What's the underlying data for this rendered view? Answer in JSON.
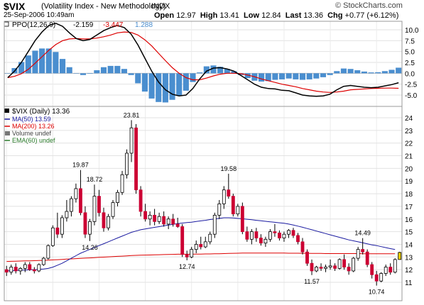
{
  "header": {
    "symbol": "$VIX",
    "name": "(Volatility Index - New Methodology)",
    "exchange": "INDX",
    "date": "25-Sep-2006 10:49am",
    "open_label": "Open",
    "open": "12.97",
    "high_label": "High",
    "high": "13.41",
    "low_label": "Low",
    "low": "12.84",
    "last_label": "Last",
    "last": "13.36",
    "chg_label": "Chg",
    "chg": "+0.77 (+6.12%)",
    "brand": "© StockCharts.com"
  },
  "colors": {
    "up": "#ffffff",
    "down": "#cc0033",
    "ma50": "#1a1aa0",
    "ma200": "#dd0000",
    "ppo": "#000000",
    "signal": "#dd0000",
    "hist": "#4a8ecf",
    "last_marker": "#f0d000"
  },
  "chart_data": [
    {
      "type": "bar",
      "panel": "indicator",
      "legend": {
        "ppo": "PPO(12,26,9)",
        "v1": "-2.159",
        "v2": "-3.447",
        "v3": "1.288"
      },
      "yticks": [
        "10.0",
        "7.5",
        "5.0",
        "2.5",
        "0.0",
        "-2.5",
        "-5.0"
      ],
      "ylim": [
        -6.5,
        11.5
      ],
      "ppo": [
        -1,
        0.5,
        2.5,
        5,
        7.5,
        9.5,
        11,
        11.5,
        10.8,
        9.3,
        8,
        7.5,
        7.8,
        8.8,
        9.8,
        10.5,
        11,
        10.5,
        9,
        6.5,
        3.5,
        0.5,
        -2,
        -3.8,
        -4.8,
        -5.2,
        -5,
        -3.5,
        -1.3,
        0.5,
        1.2,
        1.3,
        1,
        0.5,
        -0.5,
        -1.5,
        -2.5,
        -3.2,
        -3.5,
        -3.6,
        -3.9,
        -4,
        -4.5,
        -5,
        -5.2,
        -5.3,
        -5.2,
        -4.8,
        -3.8,
        -3,
        -2.8,
        -3,
        -3.2,
        -3.3,
        -3.2,
        -2.9,
        -2.6,
        -2.159
      ],
      "signal": [
        -1,
        -0.7,
        -0.1,
        0.9,
        2.3,
        3.8,
        5.3,
        6.6,
        7.5,
        7.9,
        8,
        7.9,
        7.9,
        8.1,
        8.4,
        8.8,
        9.3,
        9.5,
        9.4,
        8.8,
        7.7,
        6.3,
        4.6,
        2.9,
        1.3,
        0,
        -1,
        -1.5,
        -1.5,
        -1.1,
        -0.6,
        -0.2,
        0,
        0,
        -0.1,
        -0.4,
        -0.8,
        -1.3,
        -1.7,
        -2.1,
        -2.5,
        -2.8,
        -3.1,
        -3.5,
        -3.8,
        -4.1,
        -4.3,
        -4.4,
        -4.3,
        -4.1,
        -3.8,
        -3.7,
        -3.6,
        -3.5,
        -3.45,
        -3.4,
        -3.4,
        -3.447
      ]
    },
    {
      "type": "candlestick",
      "panel": "price",
      "legend": {
        "main": "$VIX (Daily) 13.36",
        "ma50": "MA(50) 13.59",
        "ma200": "MA(200) 13.26",
        "volume": "Volume undef",
        "ema": "EMA(60) undef"
      },
      "yticks": [
        "24",
        "23",
        "22",
        "21",
        "20",
        "19",
        "18",
        "17",
        "16",
        "15",
        "14",
        "13",
        "12",
        "11"
      ],
      "ylim": [
        10.2,
        24.8
      ],
      "ohlc": [
        [
          12,
          12.3,
          11.5,
          11.8
        ],
        [
          11.8,
          12.4,
          11.6,
          12.2
        ],
        [
          12.2,
          12.5,
          11.7,
          11.9
        ],
        [
          11.9,
          12.2,
          11.6,
          12.1
        ],
        [
          12.1,
          12.6,
          11.8,
          12.4
        ],
        [
          12.4,
          12.6,
          11.9,
          12
        ],
        [
          12,
          12.2,
          11.7,
          11.9
        ],
        [
          11.9,
          12.5,
          11.8,
          12.4
        ],
        [
          12.4,
          13,
          12.3,
          12.9
        ],
        [
          12.9,
          14,
          12.8,
          13.9
        ],
        [
          13.9,
          15.5,
          13.8,
          15.3
        ],
        [
          15.3,
          16.5,
          14.5,
          14.8
        ],
        [
          14.8,
          16.3,
          14.5,
          16.1
        ],
        [
          16.1,
          17.5,
          15.8,
          16.6
        ],
        [
          16.6,
          17.8,
          16.2,
          17.6
        ],
        [
          17.6,
          18.8,
          17.3,
          18.4
        ],
        [
          18.4,
          19.87,
          16.3,
          16.5
        ],
        [
          16.5,
          17,
          14.5,
          14.8
        ],
        [
          14.8,
          16,
          14.26,
          15.8
        ],
        [
          15.8,
          18.72,
          15.5,
          17.8
        ],
        [
          17.8,
          18.3,
          16.2,
          16.5
        ],
        [
          16.5,
          16.9,
          15,
          15.3
        ],
        [
          15.3,
          16.4,
          15.1,
          16.2
        ],
        [
          16.2,
          17.5,
          16,
          17.3
        ],
        [
          17.3,
          18.3,
          17,
          18.1
        ],
        [
          18.1,
          19.8,
          17.9,
          19.5
        ],
        [
          19.5,
          21.5,
          19.2,
          21.2
        ],
        [
          21.2,
          23.81,
          20.5,
          23.2
        ],
        [
          23.2,
          23.5,
          18,
          18.3
        ],
        [
          18.3,
          18.6,
          16.2,
          16.6
        ],
        [
          16.6,
          17.2,
          15.8,
          16
        ],
        [
          16,
          16.6,
          15.5,
          16.3
        ],
        [
          16.3,
          16.8,
          15.5,
          15.8
        ],
        [
          15.8,
          16.5,
          15.6,
          16.2
        ],
        [
          16.2,
          16.6,
          15.4,
          15.6
        ],
        [
          15.6,
          16.2,
          15.2,
          16
        ],
        [
          16,
          16.4,
          15.4,
          15.6
        ],
        [
          15.6,
          16.1,
          15.3,
          15.4
        ],
        [
          15.4,
          15.6,
          13,
          13.2
        ],
        [
          13.2,
          13.5,
          12.74,
          13
        ],
        [
          13,
          13.8,
          12.9,
          13.6
        ],
        [
          13.6,
          14.3,
          13.3,
          14
        ],
        [
          14,
          14.6,
          13.6,
          13.8
        ],
        [
          13.8,
          14.6,
          13.7,
          14.2
        ],
        [
          14.2,
          15,
          14,
          14.8
        ],
        [
          14.8,
          16.5,
          14.5,
          16.3
        ],
        [
          16.3,
          17.5,
          16,
          17.2
        ],
        [
          17.2,
          18.6,
          16.8,
          18.3
        ],
        [
          18.3,
          19.58,
          17.6,
          17.8
        ],
        [
          17.8,
          18,
          16.2,
          16.4
        ],
        [
          16.4,
          17.2,
          16.2,
          17
        ],
        [
          17,
          17.3,
          14.8,
          15
        ],
        [
          15,
          15.4,
          14.2,
          14.4
        ],
        [
          14.4,
          15.2,
          14,
          15
        ],
        [
          15,
          15.3,
          14.2,
          14.5
        ],
        [
          14.5,
          14.8,
          13.9,
          14.1
        ],
        [
          14.1,
          14.6,
          13.8,
          14.4
        ],
        [
          14.4,
          15.2,
          14.2,
          15
        ],
        [
          15,
          15.6,
          14.6,
          14.9
        ],
        [
          14.9,
          15.1,
          14.3,
          14.5
        ],
        [
          14.5,
          15,
          14.2,
          14.8
        ],
        [
          14.8,
          15.2,
          14.5,
          15.1
        ],
        [
          15.1,
          15.3,
          14.5,
          14.7
        ],
        [
          14.7,
          14.9,
          14,
          14.2
        ],
        [
          14.2,
          14.5,
          13.2,
          13.4
        ],
        [
          13.4,
          13.6,
          12.3,
          12.5
        ],
        [
          12.5,
          12.8,
          11.57,
          11.9
        ],
        [
          11.9,
          12.3,
          11.8,
          12.2
        ],
        [
          12.2,
          12.5,
          11.9,
          12.1
        ],
        [
          12.1,
          12.4,
          11.8,
          12.2
        ],
        [
          12.2,
          12.8,
          12,
          12.3
        ],
        [
          12.3,
          12.5,
          11.9,
          12.1
        ],
        [
          12.1,
          12.9,
          12,
          12.8
        ],
        [
          12.8,
          13.2,
          12,
          12.2
        ],
        [
          12.2,
          12.5,
          11.6,
          11.9
        ],
        [
          11.9,
          13,
          11.8,
          12.9
        ],
        [
          12.9,
          13.8,
          12.7,
          13.6
        ],
        [
          13.6,
          14.49,
          13.2,
          13.4
        ],
        [
          13.4,
          13.6,
          12.2,
          12.4
        ],
        [
          12.4,
          12.6,
          11.3,
          11.6
        ],
        [
          11.6,
          11.9,
          10.74,
          11.1
        ],
        [
          11.1,
          11.8,
          11,
          11.7
        ],
        [
          11.7,
          12.4,
          11.5,
          12.2
        ],
        [
          12.2,
          12.5,
          11.6,
          11.8
        ],
        [
          11.8,
          12.9,
          11.7,
          12.8
        ],
        [
          12.8,
          13.41,
          12.84,
          13.36
        ]
      ],
      "ma50": [
        11.9,
        11.92,
        11.94,
        11.96,
        11.97,
        11.99,
        12.0,
        12.02,
        12.05,
        12.1,
        12.2,
        12.35,
        12.5,
        12.7,
        12.9,
        13.1,
        13.3,
        13.45,
        13.6,
        13.75,
        13.9,
        14.05,
        14.2,
        14.35,
        14.5,
        14.65,
        14.8,
        14.95,
        15.05,
        15.15,
        15.22,
        15.28,
        15.34,
        15.4,
        15.46,
        15.52,
        15.58,
        15.64,
        15.68,
        15.72,
        15.75,
        15.8,
        15.85,
        15.9,
        15.96,
        16.0,
        16.05,
        16.1,
        16.1,
        16.08,
        16.05,
        16.02,
        15.98,
        15.94,
        15.9,
        15.86,
        15.82,
        15.78,
        15.74,
        15.7,
        15.66,
        15.6,
        15.52,
        15.44,
        15.35,
        15.25,
        15.15,
        15.05,
        14.95,
        14.85,
        14.75,
        14.65,
        14.55,
        14.45,
        14.35,
        14.28,
        14.2,
        14.12,
        14.04,
        13.96,
        13.9,
        13.82,
        13.74,
        13.66,
        13.59
      ],
      "ma200": [
        12.65,
        12.66,
        12.67,
        12.68,
        12.69,
        12.7,
        12.71,
        12.72,
        12.73,
        12.75,
        12.77,
        12.79,
        12.81,
        12.83,
        12.85,
        12.87,
        12.89,
        12.91,
        12.93,
        12.95,
        12.97,
        12.99,
        13.01,
        13.03,
        13.05,
        13.07,
        13.09,
        13.11,
        13.13,
        13.14,
        13.15,
        13.16,
        13.17,
        13.18,
        13.19,
        13.2,
        13.21,
        13.22,
        13.22,
        13.22,
        13.22,
        13.23,
        13.23,
        13.24,
        13.24,
        13.25,
        13.26,
        13.27,
        13.28,
        13.29,
        13.3,
        13.31,
        13.31,
        13.31,
        13.31,
        13.31,
        13.31,
        13.31,
        13.31,
        13.31,
        13.31,
        13.3,
        13.3,
        13.3,
        13.29,
        13.29,
        13.28,
        13.28,
        13.28,
        13.27,
        13.27,
        13.27,
        13.27,
        13.27,
        13.27,
        13.27,
        13.27,
        13.26,
        13.26,
        13.26,
        13.26,
        13.26,
        13.26,
        13.26,
        13.26
      ],
      "annotations": [
        {
          "i": 16,
          "text": "19.87",
          "pos": "above"
        },
        {
          "i": 18,
          "text": "14.26",
          "pos": "below"
        },
        {
          "i": 19,
          "text": "18.72",
          "pos": "above"
        },
        {
          "i": 27,
          "text": "23.81",
          "pos": "above"
        },
        {
          "i": 39,
          "text": "12.74",
          "pos": "below"
        },
        {
          "i": 48,
          "text": "19.58",
          "pos": "above"
        },
        {
          "i": 66,
          "text": "11.57",
          "pos": "below"
        },
        {
          "i": 77,
          "text": "14.49",
          "pos": "above"
        },
        {
          "i": 80,
          "text": "10.74",
          "pos": "below"
        }
      ]
    }
  ]
}
